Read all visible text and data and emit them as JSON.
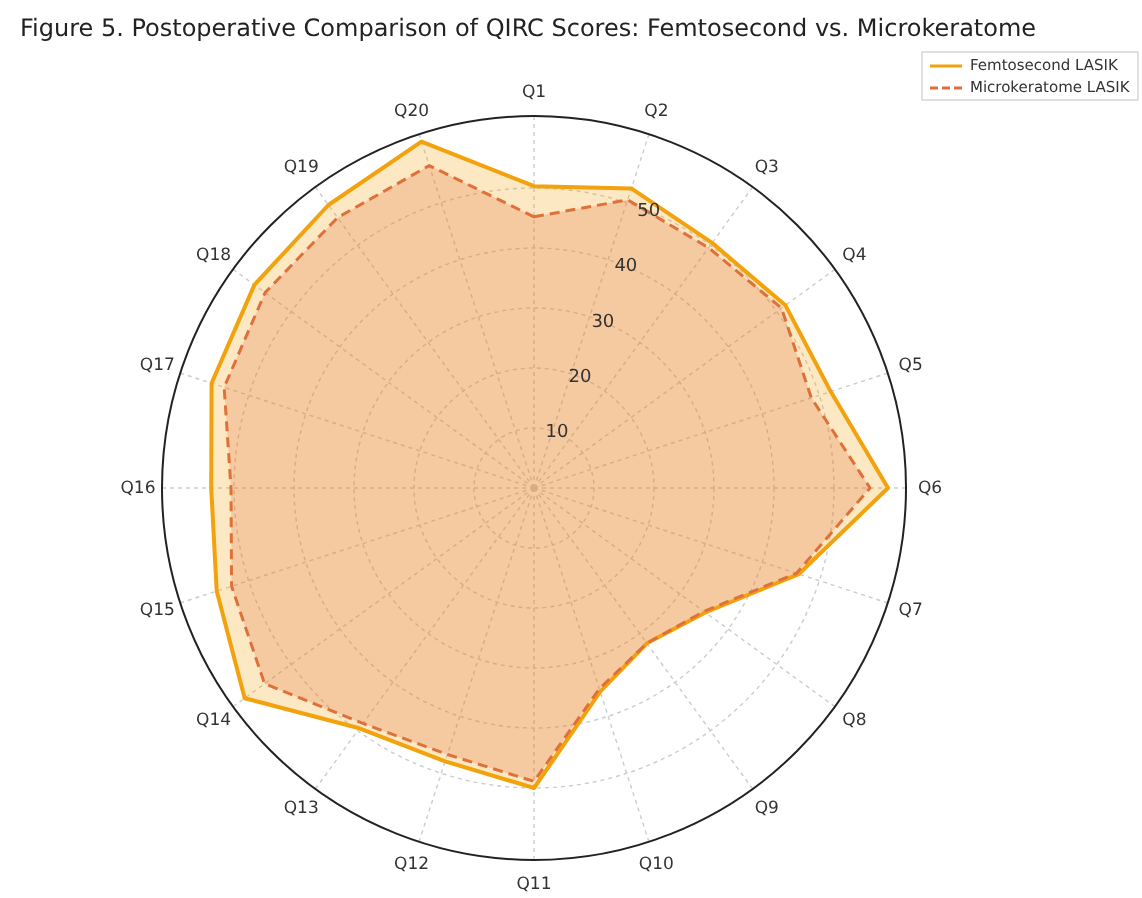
{
  "chart_data": {
    "type": "radar",
    "title": "Figure 5. Postoperative Comparison of QIRC Scores: Femtosecond vs. Microkeratome",
    "categories": [
      "Q1",
      "Q2",
      "Q3",
      "Q4",
      "Q5",
      "Q6",
      "Q7",
      "Q8",
      "Q9",
      "Q10",
      "Q11",
      "Q12",
      "Q13",
      "Q14",
      "Q15",
      "Q16",
      "Q17",
      "Q18",
      "Q19",
      "Q20"
    ],
    "series": [
      {
        "name": "Femtosecond LASIK",
        "color": "#f2a20c",
        "line_style": "solid",
        "values": [
          50.3,
          52.5,
          50.5,
          51.8,
          52,
          59,
          46.4,
          35.3,
          32,
          35.7,
          50,
          47.9,
          49.5,
          59.6,
          55.6,
          53.8,
          56.5,
          57.6,
          58.3,
          60.7
        ]
      },
      {
        "name": "Microkeratome LASIK",
        "color": "#e0703a",
        "line_style": "dashed",
        "values": [
          45.2,
          50.5,
          49.5,
          51,
          48.6,
          56,
          46,
          35,
          32,
          35.2,
          48.9,
          46.7,
          48.5,
          55.5,
          53,
          50.5,
          54.3,
          55.4,
          55.7,
          56.5
        ]
      }
    ],
    "ylim": [
      0,
      62
    ],
    "yticks": [
      10,
      20,
      30,
      40,
      50
    ],
    "grid": true,
    "legend": "top right",
    "marker": "none"
  }
}
